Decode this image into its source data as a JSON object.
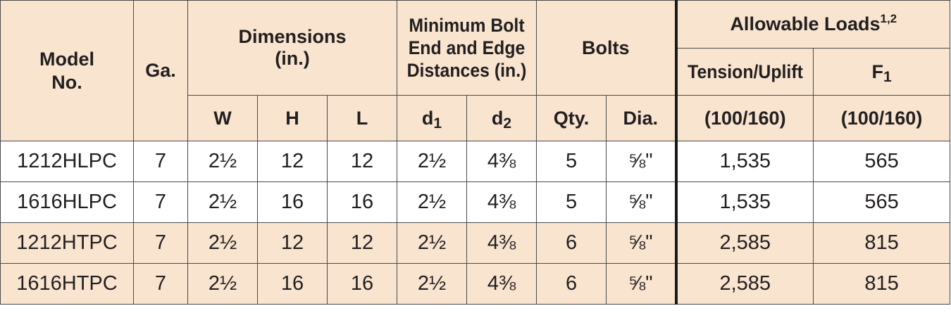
{
  "headers": {
    "model": "Model No.",
    "ga": "Ga.",
    "dimensions": "Dimensions (in.)",
    "min_bolt": "Minimum Bolt End and Edge Distances (in.)",
    "bolts": "Bolts",
    "allowable_loads": "Allowable Loads",
    "allowable_loads_sup": "1,2",
    "tension": "Tension/Uplift",
    "f1_base": "F",
    "f1_sub": "1",
    "w": "W",
    "h": "H",
    "l": "L",
    "d1_base": "d",
    "d1_sub": "1",
    "d2_base": "d",
    "d2_sub": "2",
    "qty": "Qty.",
    "dia": "Dia.",
    "tension_duration": "(100/160)",
    "f1_duration": "(100/160)"
  },
  "rows": [
    {
      "model": "1212HLPC",
      "ga": "7",
      "w": "2½",
      "h": "12",
      "l": "12",
      "d1": "2½",
      "d2": "4⅜",
      "qty": "5",
      "dia": "⅝\"",
      "tension": "1,535",
      "f1": "565"
    },
    {
      "model": "1616HLPC",
      "ga": "7",
      "w": "2½",
      "h": "16",
      "l": "16",
      "d1": "2½",
      "d2": "4⅜",
      "qty": "5",
      "dia": "⅝\"",
      "tension": "1,535",
      "f1": "565"
    },
    {
      "model": "1212HTPC",
      "ga": "7",
      "w": "2½",
      "h": "12",
      "l": "12",
      "d1": "2½",
      "d2": "4⅜",
      "qty": "6",
      "dia": "⅝\"",
      "tension": "2,585",
      "f1": "815"
    },
    {
      "model": "1616HTPC",
      "ga": "7",
      "w": "2½",
      "h": "16",
      "l": "16",
      "d1": "2½",
      "d2": "4⅜",
      "qty": "6",
      "dia": "⅝\"",
      "tension": "2,585",
      "f1": "815"
    }
  ],
  "colors": {
    "header_bg": "#f8e4cf",
    "row_tan": "#f8e4cf",
    "row_white": "#ffffff",
    "border": "#4a4a4a",
    "text": "#231f20"
  }
}
